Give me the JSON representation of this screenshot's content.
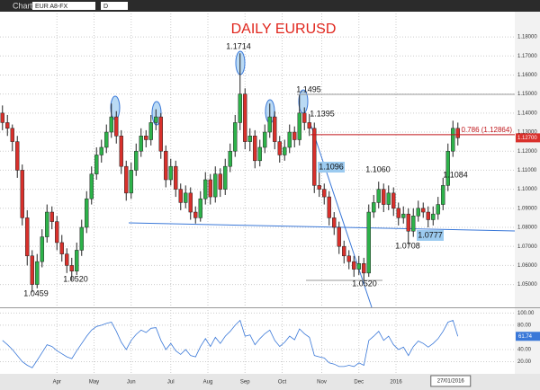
{
  "toolbar": {
    "title": "Chart",
    "symbol": "EUR A8-FX",
    "interval": "D"
  },
  "chart_data": {
    "type": "candlestick",
    "title": "DAILY EURUSD",
    "ohlc": [
      [
        1.14,
        1.144,
        1.131,
        1.135
      ],
      [
        1.135,
        1.139,
        1.128,
        1.132
      ],
      [
        1.132,
        1.134,
        1.12,
        1.125
      ],
      [
        1.125,
        1.128,
        1.106,
        1.11
      ],
      [
        1.11,
        1.113,
        1.081,
        1.085
      ],
      [
        1.085,
        1.089,
        1.06,
        1.065
      ],
      [
        1.065,
        1.068,
        1.0459,
        1.05
      ],
      [
        1.05,
        1.066,
        1.048,
        1.062
      ],
      [
        1.062,
        1.079,
        1.059,
        1.075
      ],
      [
        1.075,
        1.092,
        1.072,
        1.088
      ],
      [
        1.088,
        1.091,
        1.079,
        1.083
      ],
      [
        1.083,
        1.086,
        1.068,
        1.072
      ],
      [
        1.072,
        1.076,
        1.062,
        1.066
      ],
      [
        1.066,
        1.069,
        1.056,
        1.06
      ],
      [
        1.06,
        1.064,
        1.052,
        1.057
      ],
      [
        1.057,
        1.072,
        1.055,
        1.068
      ],
      [
        1.068,
        1.084,
        1.065,
        1.08
      ],
      [
        1.08,
        1.099,
        1.077,
        1.095
      ],
      [
        1.095,
        1.112,
        1.092,
        1.108
      ],
      [
        1.108,
        1.122,
        1.105,
        1.118
      ],
      [
        1.118,
        1.126,
        1.114,
        1.122
      ],
      [
        1.122,
        1.134,
        1.119,
        1.13
      ],
      [
        1.13,
        1.145,
        1.127,
        1.138
      ],
      [
        1.138,
        1.141,
        1.124,
        1.128
      ],
      [
        1.128,
        1.131,
        1.108,
        1.112
      ],
      [
        1.112,
        1.115,
        1.094,
        1.098
      ],
      [
        1.098,
        1.114,
        1.095,
        1.11
      ],
      [
        1.11,
        1.124,
        1.107,
        1.12
      ],
      [
        1.12,
        1.132,
        1.117,
        1.128
      ],
      [
        1.128,
        1.131,
        1.122,
        1.126
      ],
      [
        1.126,
        1.139,
        1.123,
        1.135
      ],
      [
        1.135,
        1.142,
        1.131,
        1.138
      ],
      [
        1.138,
        1.14,
        1.116,
        1.12
      ],
      [
        1.12,
        1.123,
        1.101,
        1.105
      ],
      [
        1.105,
        1.116,
        1.102,
        1.112
      ],
      [
        1.112,
        1.115,
        1.096,
        1.1
      ],
      [
        1.1,
        1.103,
        1.089,
        1.093
      ],
      [
        1.093,
        1.102,
        1.09,
        1.098
      ],
      [
        1.098,
        1.101,
        1.084,
        1.088
      ],
      [
        1.088,
        1.091,
        1.082,
        1.085
      ],
      [
        1.085,
        1.099,
        1.083,
        1.095
      ],
      [
        1.095,
        1.109,
        1.092,
        1.105
      ],
      [
        1.105,
        1.108,
        1.092,
        1.096
      ],
      [
        1.096,
        1.112,
        1.093,
        1.108
      ],
      [
        1.108,
        1.111,
        1.096,
        1.1
      ],
      [
        1.1,
        1.116,
        1.097,
        1.112
      ],
      [
        1.112,
        1.124,
        1.109,
        1.12
      ],
      [
        1.12,
        1.139,
        1.117,
        1.135
      ],
      [
        1.135,
        1.1714,
        1.131,
        1.15
      ],
      [
        1.15,
        1.153,
        1.121,
        1.125
      ],
      [
        1.125,
        1.132,
        1.12,
        1.128
      ],
      [
        1.128,
        1.131,
        1.111,
        1.115
      ],
      [
        1.115,
        1.126,
        1.112,
        1.122
      ],
      [
        1.122,
        1.134,
        1.119,
        1.13
      ],
      [
        1.13,
        1.145,
        1.127,
        1.138
      ],
      [
        1.138,
        1.141,
        1.121,
        1.125
      ],
      [
        1.125,
        1.128,
        1.114,
        1.118
      ],
      [
        1.118,
        1.126,
        1.115,
        1.122
      ],
      [
        1.122,
        1.134,
        1.119,
        1.13
      ],
      [
        1.13,
        1.133,
        1.122,
        1.126
      ],
      [
        1.126,
        1.1495,
        1.123,
        1.14
      ],
      [
        1.14,
        1.143,
        1.131,
        1.135
      ],
      [
        1.135,
        1.1395,
        1.128,
        1.132
      ],
      [
        1.132,
        1.135,
        1.098,
        1.102
      ],
      [
        1.102,
        1.1096,
        1.096,
        1.1
      ],
      [
        1.1,
        1.103,
        1.092,
        1.096
      ],
      [
        1.096,
        1.099,
        1.081,
        1.085
      ],
      [
        1.085,
        1.088,
        1.076,
        1.08
      ],
      [
        1.08,
        1.083,
        1.066,
        1.07
      ],
      [
        1.07,
        1.073,
        1.061,
        1.065
      ],
      [
        1.065,
        1.068,
        1.058,
        1.062
      ],
      [
        1.062,
        1.065,
        1.054,
        1.058
      ],
      [
        1.058,
        1.065,
        1.055,
        1.061
      ],
      [
        1.061,
        1.064,
        1.052,
        1.056
      ],
      [
        1.056,
        1.092,
        1.054,
        1.088
      ],
      [
        1.088,
        1.097,
        1.085,
        1.093
      ],
      [
        1.093,
        1.104,
        1.09,
        1.1
      ],
      [
        1.1,
        1.103,
        1.088,
        1.092
      ],
      [
        1.092,
        1.102,
        1.089,
        1.098
      ],
      [
        1.098,
        1.101,
        1.086,
        1.09
      ],
      [
        1.09,
        1.093,
        1.081,
        1.085
      ],
      [
        1.085,
        1.091,
        1.082,
        1.087
      ],
      [
        1.087,
        1.09,
        1.0708,
        1.078
      ],
      [
        1.078,
        1.09,
        1.075,
        1.086
      ],
      [
        1.086,
        1.094,
        1.083,
        1.09
      ],
      [
        1.09,
        1.093,
        1.085,
        1.088
      ],
      [
        1.088,
        1.091,
        1.08,
        1.084
      ],
      [
        1.084,
        1.091,
        1.081,
        1.087
      ],
      [
        1.087,
        1.096,
        1.084,
        1.092
      ],
      [
        1.092,
        1.106,
        1.089,
        1.102
      ],
      [
        1.102,
        1.124,
        1.099,
        1.12
      ],
      [
        1.12,
        1.136,
        1.117,
        1.132
      ],
      [
        1.132,
        1.135,
        1.123,
        1.127
      ]
    ],
    "up_color": "#2db34a",
    "down_color": "#d9302b",
    "xlim": [
      -0.5,
      103.5
    ],
    "xticks": [
      {
        "value": 11,
        "label": "Apr"
      },
      {
        "value": 18.5,
        "label": "May"
      },
      {
        "value": 26,
        "label": "Jun"
      },
      {
        "value": 34,
        "label": "Jul"
      },
      {
        "value": 41.5,
        "label": "Aug"
      },
      {
        "value": 49,
        "label": "Sep"
      },
      {
        "value": 56.5,
        "label": "Oct"
      },
      {
        "value": 64.5,
        "label": "Nov"
      },
      {
        "value": 72,
        "label": "Dec"
      },
      {
        "value": 79.5,
        "label": "2016"
      }
    ],
    "ylim": [
      1.038,
      1.1923
    ],
    "yticks": [
      {
        "value": 1.05,
        "label": "1.05000"
      },
      {
        "value": 1.06,
        "label": "1.06000"
      },
      {
        "value": 1.07,
        "label": "1.07000"
      },
      {
        "value": 1.08,
        "label": "1.08000"
      },
      {
        "value": 1.09,
        "label": "1.09000"
      },
      {
        "value": 1.1,
        "label": "1.10000"
      },
      {
        "value": 1.11,
        "label": "1.11000"
      },
      {
        "value": 1.12,
        "label": "1.12000"
      },
      {
        "value": 1.13,
        "label": "1.13000"
      },
      {
        "value": 1.14,
        "label": "1.14000"
      },
      {
        "value": 1.15,
        "label": "1.15000"
      },
      {
        "value": 1.16,
        "label": "1.16000"
      },
      {
        "value": 1.17,
        "label": "1.17000"
      },
      {
        "value": 1.18,
        "label": "1.18000"
      }
    ],
    "grid": true,
    "fib_level": {
      "value": 1.12864,
      "label": "0.786 (1.12864)",
      "color": "#c0161b"
    },
    "last_price": {
      "value": 1.127,
      "label": "1.12700"
    },
    "annotations": [
      "1.1714",
      "1.1495",
      "1.1395",
      "1.1096",
      "1.1060",
      "1.1084",
      "1.0459",
      "1.0520",
      "1.0520",
      "1.0708",
      "1.0777"
    ],
    "cursor_date": "27/01/2016",
    "oscillator": {
      "color": "#3a78d8",
      "ylim": [
        0,
        108
      ],
      "yticks": [
        {
          "value": 20,
          "label": "20.00"
        },
        {
          "value": 40,
          "label": "40.00"
        },
        {
          "value": 80,
          "label": "80.00"
        },
        {
          "value": 100,
          "label": "100.00"
        }
      ],
      "values": [
        55,
        48,
        40,
        30,
        20,
        14,
        10,
        22,
        35,
        48,
        45,
        38,
        33,
        28,
        25,
        38,
        50,
        62,
        72,
        78,
        80,
        83,
        85,
        70,
        52,
        40,
        55,
        65,
        72,
        68,
        75,
        76,
        55,
        40,
        50,
        38,
        32,
        40,
        30,
        28,
        45,
        58,
        45,
        60,
        50,
        62,
        70,
        80,
        88,
        62,
        64,
        48,
        58,
        66,
        72,
        55,
        45,
        52,
        62,
        56,
        74,
        66,
        60,
        30,
        28,
        26,
        18,
        16,
        12,
        12,
        14,
        12,
        18,
        14,
        55,
        62,
        70,
        55,
        62,
        48,
        40,
        44,
        30,
        45,
        54,
        50,
        44,
        50,
        58,
        70,
        85,
        88,
        61.74
      ],
      "last": {
        "value": 61.74,
        "label": "61.74"
      }
    }
  }
}
